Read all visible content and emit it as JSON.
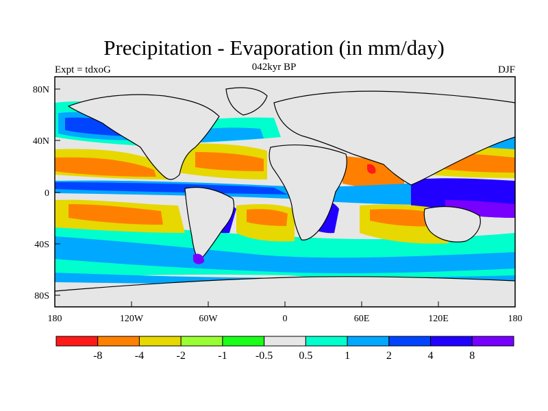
{
  "map": {
    "title": "Precipitation - Evaporation (in mm/day)",
    "left_label": "Expt = tdxoG",
    "center_label": "042kyr BP",
    "right_label": "DJF",
    "lat_ticks": [
      "80N",
      "40N",
      "0",
      "40S",
      "80S"
    ],
    "lon_ticks": [
      "180",
      "120W",
      "60W",
      "0",
      "60E",
      "120E",
      "180"
    ]
  },
  "legend": {
    "labels": [
      "-8",
      "-4",
      "-2",
      "-1",
      "-0.5",
      "0.5",
      "1",
      "2",
      "4",
      "8"
    ],
    "colors": [
      "#ff1a1a",
      "#ff8000",
      "#e6d800",
      "#99ff33",
      "#1aff1a",
      "#e6e6e6",
      "#00ffcc",
      "#00a8ff",
      "#0044ff",
      "#2200ff",
      "#7700ff"
    ]
  }
}
